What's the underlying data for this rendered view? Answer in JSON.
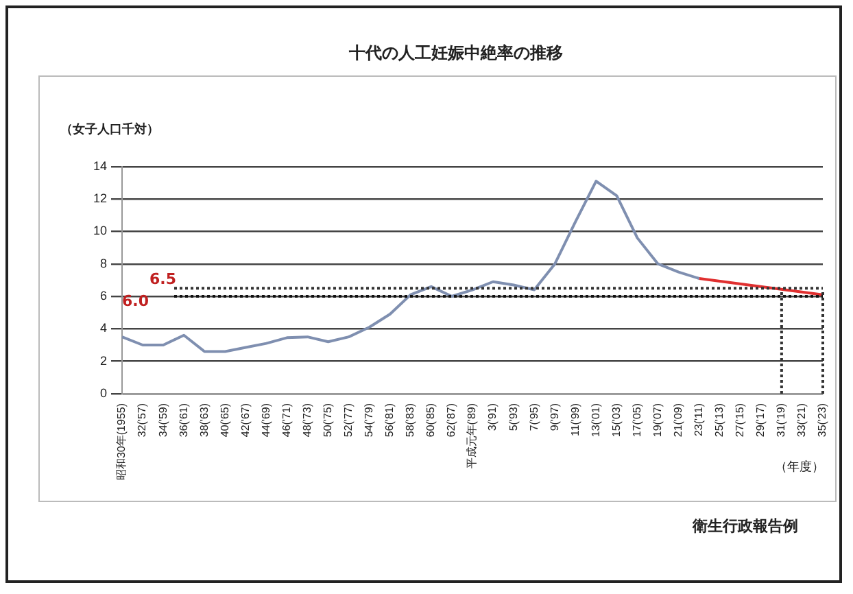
{
  "chart_data": {
    "type": "line",
    "title": "十代の人工妊娠中絶率の推移",
    "ylabel": "（女子人口千対）",
    "xlabel": "（年度）",
    "categories": [
      "昭和30年(1955)",
      "32('57)",
      "34('59)",
      "36('61)",
      "38('63)",
      "40('65)",
      "42('67)",
      "44('69)",
      "46('71)",
      "48('73)",
      "50('75)",
      "52('77)",
      "54('79)",
      "56('81)",
      "58('83)",
      "60('85)",
      "62('87)",
      "平成元年('89)",
      "3('91)",
      "5('93)",
      "7('95)",
      "9('97)",
      "11('99)",
      "13('01)",
      "15('03)",
      "17('05)",
      "19('07)",
      "21('09)",
      "23('11)",
      "25('13)",
      "27('15)",
      "29('17)",
      "31('19)",
      "33('21)",
      "35('23)"
    ],
    "series": [
      {
        "color": "#7f8fb0",
        "values": [
          3.5,
          3.0,
          3.0,
          3.6,
          2.6,
          2.6,
          2.85,
          3.1,
          3.45,
          3.5,
          3.2,
          3.5,
          4.1,
          4.9,
          6.1,
          6.6,
          6.0,
          6.4,
          6.9,
          6.7,
          6.4,
          8.0,
          10.6,
          13.1,
          12.2,
          9.6,
          8.0,
          7.5,
          7.1,
          null,
          null,
          null,
          null,
          null,
          null
        ]
      },
      {
        "color": "#e03030",
        "values": [
          null,
          null,
          null,
          null,
          null,
          null,
          null,
          null,
          null,
          null,
          null,
          null,
          null,
          null,
          null,
          null,
          null,
          null,
          null,
          null,
          null,
          null,
          null,
          null,
          null,
          null,
          null,
          null,
          7.1,
          null,
          null,
          null,
          null,
          null,
          6.1
        ]
      }
    ],
    "ylim": [
      0,
      14
    ],
    "yticks": [
      0,
      2,
      4,
      6,
      8,
      10,
      12,
      14
    ],
    "grid": "y",
    "legend": false,
    "marker": "none",
    "line_style": "solid",
    "ref_lines": [
      {
        "axis": "y",
        "value": 6.5,
        "label": "6.5",
        "line_style": "dotted",
        "color": "#333333"
      },
      {
        "axis": "y",
        "value": 6.0,
        "label": "6.0",
        "line_style": "dotted",
        "color": "#111111"
      },
      {
        "axis": "x",
        "value": "31('19)",
        "line_style": "dotted",
        "color": "#333333"
      },
      {
        "axis": "x",
        "value": "35('23)",
        "line_style": "dotted",
        "color": "#333333"
      }
    ],
    "annotations": [
      "衛生行政報告例"
    ]
  }
}
